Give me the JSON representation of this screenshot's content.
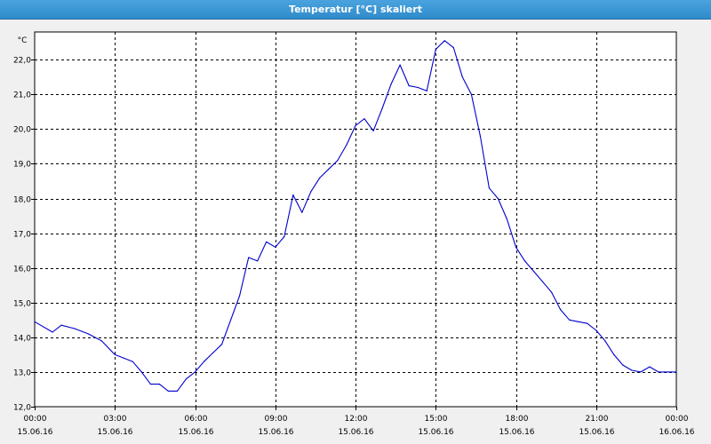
{
  "window": {
    "title": "Temperatur [°C] skaliert"
  },
  "colors": {
    "title_bar": "#3b97d3",
    "plot_bg": "#ffffff",
    "series": "#0000cc",
    "grid": "#000000"
  },
  "chart_data": {
    "type": "line",
    "title": "Temperatur [°C] skaliert",
    "ylabel": "°C",
    "xlabel": "",
    "ylim": [
      12.0,
      22.8
    ],
    "xlim": [
      "15.06.16 00:00",
      "16.06.16 00:00"
    ],
    "grid": true,
    "legend": "none",
    "y_ticks": [
      "12,0",
      "13,0",
      "14,0",
      "15,0",
      "16,0",
      "17,0",
      "18,0",
      "19,0",
      "20,0",
      "21,0",
      "22,0"
    ],
    "y_tick_values": [
      12,
      13,
      14,
      15,
      16,
      17,
      18,
      19,
      20,
      21,
      22
    ],
    "x_ticks": [
      {
        "time": "00:00",
        "date": "15.06.16"
      },
      {
        "time": "03:00",
        "date": "15.06.16"
      },
      {
        "time": "06:00",
        "date": "15.06.16"
      },
      {
        "time": "09:00",
        "date": "15.06.16"
      },
      {
        "time": "12:00",
        "date": "15.06.16"
      },
      {
        "time": "15:00",
        "date": "15.06.16"
      },
      {
        "time": "18:00",
        "date": "15.06.16"
      },
      {
        "time": "21:00",
        "date": "15.06.16"
      },
      {
        "time": "00:00",
        "date": "16.06.16"
      }
    ],
    "series": [
      {
        "x": [
          "15.06.16 00:00",
          "15.06.16 00:40",
          "15.06.16 01:00",
          "15.06.16 01:30",
          "15.06.16 02:00",
          "15.06.16 02:30",
          "15.06.16 03:00",
          "15.06.16 03:20",
          "15.06.16 03:40",
          "15.06.16 04:00",
          "15.06.16 04:20",
          "15.06.16 04:40",
          "15.06.16 05:00",
          "15.06.16 05:20",
          "15.06.16 05:40",
          "15.06.16 06:00",
          "15.06.16 06:20",
          "15.06.16 06:40",
          "15.06.16 07:00",
          "15.06.16 07:20",
          "15.06.16 07:40",
          "15.06.16 08:00",
          "15.06.16 08:20",
          "15.06.16 08:40",
          "15.06.16 09:00",
          "15.06.16 09:20",
          "15.06.16 09:40",
          "15.06.16 10:00",
          "15.06.16 10:20",
          "15.06.16 10:40",
          "15.06.16 11:00",
          "15.06.16 11:20",
          "15.06.16 11:40",
          "15.06.16 12:00",
          "15.06.16 12:20",
          "15.06.16 12:40",
          "15.06.16 13:00",
          "15.06.16 13:20",
          "15.06.16 13:40",
          "15.06.16 14:00",
          "15.06.16 14:20",
          "15.06.16 14:40",
          "15.06.16 15:00",
          "15.06.16 15:20",
          "15.06.16 15:40",
          "15.06.16 16:00",
          "15.06.16 16:20",
          "15.06.16 16:40",
          "15.06.16 17:00",
          "15.06.16 17:20",
          "15.06.16 17:40",
          "15.06.16 18:00",
          "15.06.16 18:20",
          "15.06.16 18:40",
          "15.06.16 19:00",
          "15.06.16 19:20",
          "15.06.16 19:40",
          "15.06.16 20:00",
          "15.06.16 20:20",
          "15.06.16 20:40",
          "15.06.16 21:00",
          "15.06.16 21:20",
          "15.06.16 21:40",
          "15.06.16 22:00",
          "15.06.16 22:20",
          "15.06.16 22:40",
          "15.06.16 23:00",
          "15.06.16 23:20",
          "15.06.16 23:40",
          "16.06.16 00:00"
        ],
        "y": [
          14.45,
          14.15,
          14.35,
          14.25,
          14.1,
          13.9,
          13.5,
          13.4,
          13.3,
          13.0,
          12.65,
          12.65,
          12.45,
          12.45,
          12.8,
          13.0,
          13.3,
          13.55,
          13.8,
          14.5,
          15.2,
          16.3,
          16.2,
          16.75,
          16.6,
          16.9,
          18.1,
          17.6,
          18.2,
          18.6,
          18.85,
          19.1,
          19.55,
          20.1,
          20.3,
          19.95,
          20.6,
          21.3,
          21.85,
          21.25,
          21.2,
          21.1,
          22.3,
          22.55,
          22.35,
          21.5,
          21.0,
          19.8,
          18.3,
          18.0,
          17.4,
          16.6,
          16.2,
          15.9,
          15.6,
          15.3,
          14.8,
          14.5,
          14.45,
          14.4,
          14.2,
          13.9,
          13.5,
          13.2,
          13.05,
          13.0,
          13.15,
          13.0,
          13.0,
          13.0
        ]
      }
    ]
  }
}
